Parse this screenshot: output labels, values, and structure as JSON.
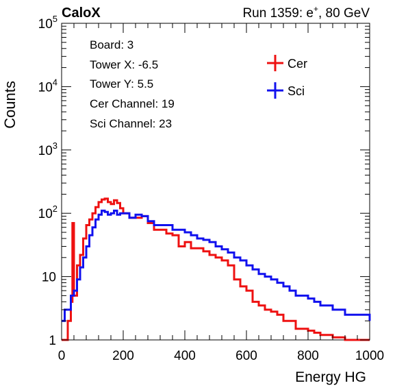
{
  "chart_data": {
    "type": "line",
    "title_left": "CaloX",
    "title_right_prefix": "Run 1359: e",
    "title_right_sup": "+",
    "title_right_suffix": ", 80 GeV",
    "xlabel": "Energy HG",
    "ylabel": "Counts",
    "xlim": [
      0,
      1000
    ],
    "ylim": [
      1,
      100000
    ],
    "yscale": "log",
    "x_ticks": [
      0,
      200,
      400,
      600,
      800,
      1000
    ],
    "x_tick_labels": [
      "0",
      "200",
      "400",
      "600",
      "800",
      "1000"
    ],
    "y_tick_labels": [
      {
        "value": 1,
        "base": "1",
        "exp": ""
      },
      {
        "value": 10,
        "base": "10",
        "exp": ""
      },
      {
        "value": 100,
        "base": "10",
        "exp": "2"
      },
      {
        "value": 1000,
        "base": "10",
        "exp": "3"
      },
      {
        "value": 10000,
        "base": "10",
        "exp": "4"
      },
      {
        "value": 100000,
        "base": "10",
        "exp": "5"
      }
    ],
    "info_lines": [
      "Board: 3",
      "Tower X: -6.5",
      "Tower Y: 5.5",
      "Cer Channel: 19",
      "Sci Channel: 23"
    ],
    "legend_position": "top-right",
    "series": [
      {
        "name": "Cer",
        "color": "#ee1111",
        "x": [
          0,
          20,
          30,
          35,
          40,
          50,
          60,
          70,
          80,
          90,
          100,
          110,
          120,
          130,
          140,
          150,
          160,
          170,
          180,
          190,
          200,
          220,
          240,
          260,
          280,
          300,
          320,
          340,
          360,
          380,
          400,
          420,
          440,
          460,
          480,
          500,
          520,
          540,
          560,
          580,
          600,
          620,
          640,
          660,
          680,
          700,
          720,
          740,
          760,
          780,
          800,
          820,
          840,
          860,
          880,
          900,
          920,
          940,
          960,
          980,
          1000
        ],
        "y": [
          1,
          2,
          4,
          70,
          5,
          15,
          22,
          40,
          65,
          80,
          100,
          125,
          150,
          165,
          170,
          150,
          140,
          160,
          145,
          120,
          100,
          85,
          85,
          90,
          70,
          55,
          55,
          48,
          45,
          30,
          35,
          28,
          28,
          25,
          22,
          20,
          18,
          15,
          9,
          7,
          6,
          4,
          3.5,
          3,
          2.8,
          2.5,
          2,
          2,
          1.5,
          1.5,
          1.4,
          1.3,
          1.2,
          1.2,
          1.1,
          1.1,
          1,
          1,
          1,
          1,
          1
        ]
      },
      {
        "name": "Sci",
        "color": "#1111ee",
        "x": [
          0,
          10,
          20,
          30,
          40,
          50,
          60,
          70,
          80,
          90,
          100,
          110,
          120,
          130,
          140,
          150,
          160,
          170,
          180,
          190,
          200,
          220,
          240,
          260,
          280,
          300,
          320,
          340,
          360,
          380,
          400,
          420,
          440,
          460,
          480,
          500,
          520,
          540,
          560,
          580,
          600,
          620,
          640,
          660,
          680,
          700,
          720,
          740,
          760,
          780,
          800,
          820,
          840,
          860,
          880,
          900,
          920,
          940,
          960,
          980,
          1000
        ],
        "y": [
          2,
          3,
          3,
          5,
          6,
          9,
          14,
          20,
          30,
          45,
          60,
          80,
          95,
          110,
          105,
          95,
          100,
          110,
          95,
          100,
          100,
          85,
          95,
          90,
          75,
          65,
          65,
          65,
          55,
          55,
          50,
          45,
          40,
          38,
          35,
          30,
          27,
          24,
          20,
          18,
          15,
          13,
          11,
          10,
          9,
          8,
          7,
          6,
          5,
          5,
          4.5,
          4,
          3.5,
          3.5,
          3,
          3,
          2.5,
          2.5,
          2.5,
          2.5,
          2
        ]
      }
    ]
  }
}
